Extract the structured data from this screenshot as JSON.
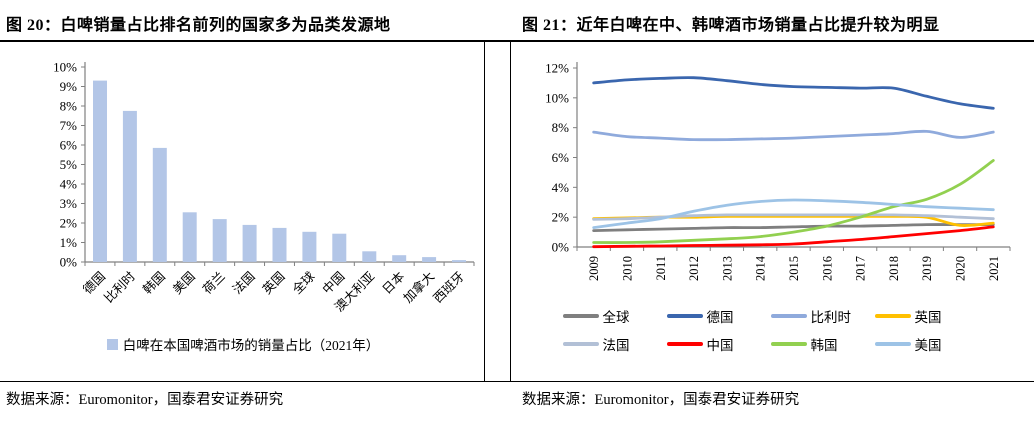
{
  "panels": [
    {
      "title": "图 20：白啤销量占比排名前列的国家多为品类发源地",
      "source": "数据来源：Euromonitor，国泰君安证券研究"
    },
    {
      "title": "图 21：近年白啤在中、韩啤酒市场销量占比提升较为明显",
      "source": "数据来源：Euromonitor，国泰君安证券研究"
    }
  ],
  "colors": {
    "axis": "#808080",
    "bar_fill": "#B3C6E7",
    "text": "#000000"
  },
  "chart_data": [
    {
      "type": "bar",
      "title": "图 20：白啤销量占比排名前列的国家多为品类发源地",
      "categories": [
        "德国",
        "比利时",
        "韩国",
        "美国",
        "荷兰",
        "法国",
        "英国",
        "全球",
        "中国",
        "澳大利亚",
        "日本",
        "加拿大",
        "西班牙"
      ],
      "values": [
        9.3,
        7.75,
        5.85,
        2.55,
        2.2,
        1.9,
        1.75,
        1.55,
        1.45,
        0.55,
        0.35,
        0.25,
        0.1
      ],
      "legend": [
        "白啤在本国啤酒市场的销量占比（2021年）"
      ],
      "bar_color": "#B3C6E7",
      "xlabel": "",
      "ylabel": "",
      "ylim": [
        0,
        10
      ],
      "ytick_step": 1,
      "yticks": [
        "0%",
        "1%",
        "2%",
        "3%",
        "4%",
        "5%",
        "6%",
        "7%",
        "8%",
        "9%",
        "10%"
      ],
      "grid": false,
      "legend_position": "bottom"
    },
    {
      "type": "line",
      "title": "图 21：近年白啤在中、韩啤酒市场销量占比提升较为明显",
      "x": [
        "2009",
        "2010",
        "2011",
        "2012",
        "2013",
        "2014",
        "2015",
        "2016",
        "2017",
        "2018",
        "2019",
        "2020",
        "2021"
      ],
      "series": [
        {
          "name": "全球",
          "color": "#7F7F7F",
          "values": [
            1.1,
            1.15,
            1.2,
            1.25,
            1.3,
            1.3,
            1.35,
            1.4,
            1.4,
            1.45,
            1.5,
            1.5,
            1.5
          ]
        },
        {
          "name": "德国",
          "color": "#3A66AE",
          "values": [
            11.0,
            11.2,
            11.3,
            11.35,
            11.15,
            10.9,
            10.75,
            10.7,
            10.65,
            10.65,
            10.1,
            9.6,
            9.3
          ]
        },
        {
          "name": "比利时",
          "color": "#8FAADC",
          "values": [
            7.7,
            7.4,
            7.3,
            7.2,
            7.2,
            7.25,
            7.3,
            7.4,
            7.5,
            7.6,
            7.75,
            7.35,
            7.7
          ]
        },
        {
          "name": "英国",
          "color": "#FFC000",
          "values": [
            1.9,
            1.95,
            2.0,
            2.0,
            2.05,
            2.05,
            2.05,
            2.05,
            2.05,
            2.05,
            2.0,
            1.45,
            1.6
          ]
        },
        {
          "name": "法国",
          "color": "#B2C0D6",
          "values": [
            1.85,
            1.9,
            2.0,
            2.1,
            2.15,
            2.15,
            2.15,
            2.15,
            2.15,
            2.15,
            2.1,
            2.0,
            1.9
          ]
        },
        {
          "name": "中国",
          "color": "#FF0000",
          "values": [
            0.02,
            0.05,
            0.07,
            0.1,
            0.12,
            0.15,
            0.2,
            0.35,
            0.5,
            0.7,
            0.9,
            1.1,
            1.35
          ]
        },
        {
          "name": "韩国",
          "color": "#92D050",
          "values": [
            0.3,
            0.3,
            0.35,
            0.45,
            0.55,
            0.7,
            1.0,
            1.4,
            2.0,
            2.7,
            3.2,
            4.2,
            5.8
          ]
        },
        {
          "name": "美国",
          "color": "#9DC3E6",
          "values": [
            1.3,
            1.6,
            1.9,
            2.4,
            2.8,
            3.05,
            3.15,
            3.1,
            3.0,
            2.85,
            2.7,
            2.6,
            2.5
          ]
        }
      ],
      "xlabel": "",
      "ylabel": "",
      "ylim": [
        0,
        12
      ],
      "ytick_step": 2,
      "yticks": [
        "0%",
        "2%",
        "4%",
        "6%",
        "8%",
        "10%",
        "12%"
      ],
      "grid": false,
      "legend_position": "bottom"
    }
  ]
}
